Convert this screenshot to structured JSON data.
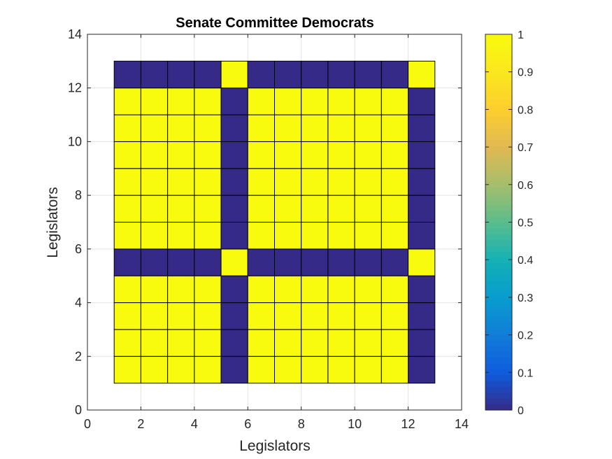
{
  "chart_data": {
    "type": "heatmap",
    "title": "Senate Committee Democrats",
    "xlabel": "Legislators",
    "ylabel": "Legislators",
    "xlim": [
      0,
      14
    ],
    "ylim": [
      0,
      14
    ],
    "xticks": [
      0,
      2,
      4,
      6,
      8,
      10,
      12,
      14
    ],
    "yticks": [
      0,
      2,
      4,
      6,
      8,
      10,
      12,
      14
    ],
    "grid": true,
    "x_edges": [
      1,
      2,
      3,
      4,
      5,
      6,
      7,
      8,
      9,
      10,
      11,
      12,
      13
    ],
    "y_edges": [
      1,
      2,
      3,
      4,
      5,
      6,
      7,
      8,
      9,
      10,
      11,
      12,
      13
    ],
    "rows_bottom_to_top": [
      [
        1,
        1,
        1,
        1,
        0,
        1,
        1,
        1,
        1,
        1,
        1,
        0
      ],
      [
        1,
        1,
        1,
        1,
        0,
        1,
        1,
        1,
        1,
        1,
        1,
        0
      ],
      [
        1,
        1,
        1,
        1,
        0,
        1,
        1,
        1,
        1,
        1,
        1,
        0
      ],
      [
        1,
        1,
        1,
        1,
        0,
        1,
        1,
        1,
        1,
        1,
        1,
        0
      ],
      [
        0,
        0,
        0,
        0,
        1,
        0,
        0,
        0,
        0,
        0,
        0,
        1
      ],
      [
        1,
        1,
        1,
        1,
        0,
        1,
        1,
        1,
        1,
        1,
        1,
        0
      ],
      [
        1,
        1,
        1,
        1,
        0,
        1,
        1,
        1,
        1,
        1,
        1,
        0
      ],
      [
        1,
        1,
        1,
        1,
        0,
        1,
        1,
        1,
        1,
        1,
        1,
        0
      ],
      [
        1,
        1,
        1,
        1,
        0,
        1,
        1,
        1,
        1,
        1,
        1,
        0
      ],
      [
        1,
        1,
        1,
        1,
        0,
        1,
        1,
        1,
        1,
        1,
        1,
        0
      ],
      [
        1,
        1,
        1,
        1,
        0,
        1,
        1,
        1,
        1,
        1,
        1,
        0
      ],
      [
        0,
        0,
        0,
        0,
        1,
        0,
        0,
        0,
        0,
        0,
        0,
        1
      ]
    ],
    "colormap": "parula",
    "color_low": "#352a87",
    "color_high": "#f9fb0e",
    "colorbar": {
      "range": [
        0,
        1
      ],
      "ticks": [
        "0",
        "0.1",
        "0.2",
        "0.3",
        "0.4",
        "0.5",
        "0.6",
        "0.7",
        "0.8",
        "0.9",
        "1"
      ],
      "placement": "right"
    }
  }
}
